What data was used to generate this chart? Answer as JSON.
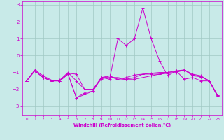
{
  "xlabel": "Windchill (Refroidissement éolien,°C)",
  "bg_color": "#c8eae8",
  "grid_color": "#a0c8c4",
  "line_color": "#cc00cc",
  "xlim": [
    -0.5,
    23.5
  ],
  "ylim": [
    -3.5,
    3.2
  ],
  "yticks": [
    -3,
    -2,
    -1,
    0,
    1,
    2,
    3
  ],
  "xticks": [
    0,
    1,
    2,
    3,
    4,
    5,
    6,
    7,
    8,
    9,
    10,
    11,
    12,
    13,
    14,
    15,
    16,
    17,
    18,
    19,
    20,
    21,
    22,
    23
  ],
  "line1_x": [
    0,
    1,
    2,
    3,
    4,
    5,
    6,
    7,
    8,
    9,
    10,
    11,
    12,
    13,
    14,
    15,
    16,
    17,
    18,
    19,
    20,
    21,
    22,
    23
  ],
  "line1_y": [
    -1.5,
    -0.9,
    -1.3,
    -1.5,
    -1.5,
    -1.1,
    -2.5,
    -2.3,
    -2.1,
    -1.3,
    -1.2,
    -1.4,
    -1.3,
    -1.15,
    -1.1,
    -1.05,
    -1.0,
    -1.0,
    -0.95,
    -0.85,
    -1.2,
    -1.25,
    -1.5,
    -2.4
  ],
  "line2_x": [
    0,
    1,
    2,
    3,
    4,
    5,
    6,
    7,
    8,
    9,
    10,
    11,
    12,
    13,
    14,
    15,
    16,
    17,
    18,
    19,
    20,
    21,
    22,
    23
  ],
  "line2_y": [
    -1.5,
    -0.9,
    -1.3,
    -1.5,
    -1.5,
    -1.1,
    -2.5,
    -2.2,
    -2.1,
    -1.3,
    -1.4,
    1.0,
    0.6,
    1.0,
    2.8,
    1.0,
    -0.3,
    -1.2,
    -0.9,
    -1.4,
    -1.3,
    -1.5,
    -1.5,
    -2.4
  ],
  "line3_x": [
    0,
    1,
    2,
    3,
    4,
    5,
    6,
    7,
    8,
    9,
    10,
    11,
    12,
    13,
    14,
    15,
    16,
    17,
    18,
    19,
    20,
    21,
    22,
    23
  ],
  "line3_y": [
    -1.5,
    -0.85,
    -1.2,
    -1.45,
    -1.5,
    -1.05,
    -1.1,
    -2.0,
    -2.0,
    -1.4,
    -1.2,
    -1.45,
    -1.4,
    -1.4,
    -1.3,
    -1.2,
    -1.1,
    -1.05,
    -1.0,
    -0.85,
    -1.1,
    -1.2,
    -1.5,
    -2.35
  ],
  "line4_x": [
    0,
    1,
    2,
    3,
    4,
    5,
    6,
    7,
    8,
    9,
    10,
    11,
    12,
    13,
    14,
    15,
    16,
    17,
    18,
    19,
    20,
    21,
    22,
    23
  ],
  "line4_y": [
    -1.5,
    -0.9,
    -1.3,
    -1.5,
    -1.45,
    -1.0,
    -1.5,
    -2.0,
    -2.0,
    -1.3,
    -1.3,
    -1.3,
    -1.4,
    -1.3,
    -1.1,
    -1.1,
    -1.1,
    -1.0,
    -0.9,
    -0.85,
    -1.15,
    -1.25,
    -1.5,
    -2.35
  ]
}
